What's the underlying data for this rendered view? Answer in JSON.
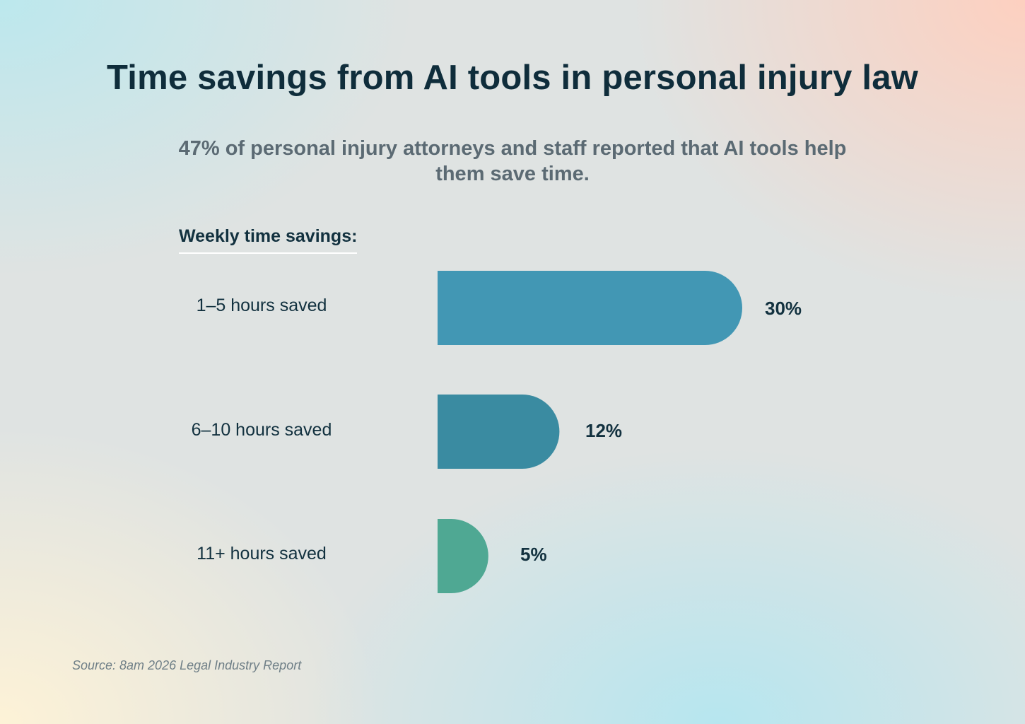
{
  "title": "Time savings from AI tools in personal injury law",
  "subtitle": "47% of personal injury attorneys and staff reported that AI tools help them save time.",
  "section_label": "Weekly time savings:",
  "source": "Source: 8am 2026 Legal Industry Report",
  "colors": {
    "bar_1": "#4297b4",
    "bar_2": "#3a8ba1",
    "bar_3": "#4fa893",
    "text_dark": "#12313f",
    "subtitle": "#5b6a73"
  },
  "chart_data": {
    "type": "bar",
    "orientation": "horizontal",
    "categories": [
      "1–5 hours saved",
      "6–10 hours saved",
      "11+ hours saved"
    ],
    "values": [
      30,
      12,
      5
    ],
    "value_labels": [
      "30%",
      "12%",
      "5%"
    ],
    "unit": "%",
    "xlim": [
      0,
      30
    ],
    "grid": false,
    "legend": "none"
  }
}
